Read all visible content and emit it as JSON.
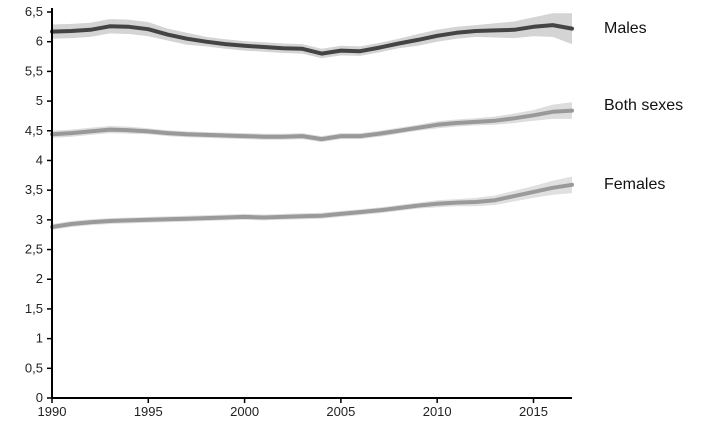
{
  "chart_data": {
    "type": "line",
    "x_ticks": [
      "1990",
      "1995",
      "2000",
      "2005",
      "2010",
      "2015"
    ],
    "y_ticks": [
      "0",
      "0,5",
      "1",
      "1,5",
      "2",
      "2,5",
      "3",
      "3,5",
      "4",
      "4,5",
      "5",
      "5,5",
      "6",
      "6,5"
    ],
    "xlim": [
      1990,
      2017
    ],
    "ylim": [
      0,
      6.5
    ],
    "grid": false,
    "x": [
      1990,
      1991,
      1992,
      1993,
      1994,
      1995,
      1996,
      1997,
      1998,
      1999,
      2000,
      2001,
      2002,
      2003,
      2004,
      2005,
      2006,
      2007,
      2008,
      2009,
      2010,
      2011,
      2012,
      2013,
      2014,
      2015,
      2016,
      2017
    ],
    "series": [
      {
        "name": "Males",
        "color": "#444444",
        "band_color": "#d4d4d4",
        "values": [
          6.17,
          6.18,
          6.2,
          6.26,
          6.25,
          6.21,
          6.12,
          6.05,
          6.0,
          5.96,
          5.93,
          5.91,
          5.89,
          5.88,
          5.8,
          5.85,
          5.84,
          5.9,
          5.97,
          6.03,
          6.1,
          6.15,
          6.18,
          6.19,
          6.2,
          6.25,
          6.28,
          6.22
        ],
        "band": [
          0.12,
          0.12,
          0.12,
          0.12,
          0.12,
          0.12,
          0.1,
          0.1,
          0.08,
          0.08,
          0.08,
          0.08,
          0.08,
          0.08,
          0.08,
          0.08,
          0.08,
          0.08,
          0.08,
          0.1,
          0.1,
          0.1,
          0.1,
          0.12,
          0.14,
          0.16,
          0.2,
          0.26
        ]
      },
      {
        "name": "Both sexes",
        "color": "#999999",
        "band_color": "#dddddd",
        "values": [
          4.44,
          4.46,
          4.49,
          4.52,
          4.51,
          4.49,
          4.46,
          4.44,
          4.43,
          4.42,
          4.41,
          4.4,
          4.4,
          4.41,
          4.36,
          4.41,
          4.41,
          4.45,
          4.5,
          4.55,
          4.6,
          4.63,
          4.65,
          4.67,
          4.71,
          4.76,
          4.82,
          4.84
        ],
        "band": [
          0.06,
          0.06,
          0.06,
          0.06,
          0.06,
          0.05,
          0.05,
          0.05,
          0.05,
          0.05,
          0.05,
          0.05,
          0.05,
          0.05,
          0.05,
          0.05,
          0.05,
          0.05,
          0.05,
          0.05,
          0.06,
          0.06,
          0.06,
          0.07,
          0.08,
          0.09,
          0.12,
          0.14
        ]
      },
      {
        "name": "Females",
        "color": "#9a9a9a",
        "band_color": "#e0e0e0",
        "values": [
          2.88,
          2.93,
          2.96,
          2.98,
          2.99,
          3.0,
          3.01,
          3.02,
          3.03,
          3.04,
          3.05,
          3.04,
          3.05,
          3.06,
          3.07,
          3.1,
          3.13,
          3.16,
          3.2,
          3.24,
          3.27,
          3.29,
          3.3,
          3.33,
          3.4,
          3.47,
          3.54,
          3.59
        ],
        "band": [
          0.05,
          0.05,
          0.05,
          0.05,
          0.05,
          0.05,
          0.05,
          0.05,
          0.05,
          0.05,
          0.05,
          0.05,
          0.05,
          0.05,
          0.05,
          0.05,
          0.05,
          0.05,
          0.05,
          0.05,
          0.06,
          0.06,
          0.07,
          0.08,
          0.09,
          0.1,
          0.12,
          0.14
        ]
      }
    ]
  }
}
